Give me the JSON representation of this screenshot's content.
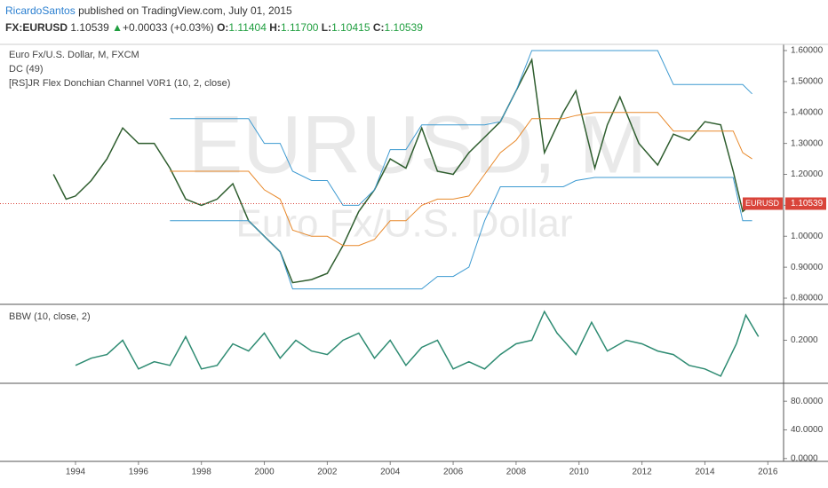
{
  "header": {
    "author": "RicardoSantos",
    "published": "published on TradingView.com, July 01, 2015",
    "symbol": "FX:EURUSD",
    "price": "1.10539",
    "arrow": "▲",
    "change": "+0.00033 (+0.03%)",
    "o_label": "O:",
    "o": "1.11404",
    "h_label": "H:",
    "h": "1.11700",
    "l_label": "L:",
    "l": "1.10415",
    "c_label": "C:",
    "c": "1.10539"
  },
  "chart_data": [
    {
      "type": "line",
      "title": "Euro Fx/U.S. Dollar, M, FXCM",
      "annotations": [
        "DC (49)",
        "[RS]JR Flex Donchian Channel V0R1 (10, 2, close)"
      ],
      "watermark": [
        "EURUSD, M",
        "Euro Fx/U.S. Dollar"
      ],
      "price_symbol": "EURUSD",
      "price_line": 1.10539,
      "x": [
        1993.3,
        1993.7,
        1994.0,
        1994.5,
        1995.0,
        1995.5,
        1996.0,
        1996.5,
        1997.0,
        1997.5,
        1998.0,
        1998.5,
        1999.0,
        1999.5,
        2000.0,
        2000.5,
        2000.9,
        2001.5,
        2002.0,
        2002.5,
        2003.0,
        2003.5,
        2004.0,
        2004.5,
        2005.0,
        2005.5,
        2006.0,
        2006.5,
        2007.0,
        2007.5,
        2008.0,
        2008.5,
        2008.9,
        2009.5,
        2009.9,
        2010.5,
        2010.9,
        2011.3,
        2011.9,
        2012.5,
        2013.0,
        2013.5,
        2014.0,
        2014.5,
        2014.9,
        2015.2,
        2015.5
      ],
      "series": [
        {
          "color": "#2f5e2f",
          "values": [
            1.2,
            1.12,
            1.13,
            1.18,
            1.25,
            1.35,
            1.3,
            1.3,
            1.22,
            1.12,
            1.1,
            1.12,
            1.17,
            1.05,
            1.0,
            0.95,
            0.85,
            0.86,
            0.88,
            0.97,
            1.08,
            1.15,
            1.25,
            1.22,
            1.35,
            1.21,
            1.2,
            1.27,
            1.32,
            1.37,
            1.47,
            1.57,
            1.27,
            1.4,
            1.47,
            1.22,
            1.36,
            1.45,
            1.3,
            1.23,
            1.33,
            1.31,
            1.37,
            1.36,
            1.21,
            1.08,
            1.105
          ]
        },
        {
          "color": "#3d9ad1",
          "values": [
            null,
            null,
            null,
            null,
            null,
            null,
            null,
            null,
            1.38,
            1.38,
            1.38,
            1.38,
            1.38,
            1.38,
            1.3,
            1.3,
            1.21,
            1.18,
            1.18,
            1.1,
            1.1,
            1.15,
            1.28,
            1.28,
            1.36,
            1.36,
            1.36,
            1.36,
            1.36,
            1.37,
            1.47,
            1.6,
            1.6,
            1.6,
            1.6,
            1.6,
            1.6,
            1.6,
            1.6,
            1.6,
            1.49,
            1.49,
            1.49,
            1.49,
            1.49,
            1.49,
            1.46
          ]
        },
        {
          "color": "#3d9ad1",
          "values": [
            null,
            null,
            null,
            null,
            null,
            null,
            null,
            null,
            1.05,
            1.05,
            1.05,
            1.05,
            1.05,
            1.05,
            1.0,
            0.95,
            0.83,
            0.83,
            0.83,
            0.83,
            0.83,
            0.83,
            0.83,
            0.83,
            0.83,
            0.87,
            0.87,
            0.9,
            1.05,
            1.16,
            1.16,
            1.16,
            1.16,
            1.16,
            1.18,
            1.19,
            1.19,
            1.19,
            1.19,
            1.19,
            1.19,
            1.19,
            1.19,
            1.19,
            1.19,
            1.05,
            1.05
          ]
        },
        {
          "color": "#e8892b",
          "values": [
            null,
            null,
            null,
            null,
            null,
            null,
            null,
            null,
            1.21,
            1.21,
            1.21,
            1.21,
            1.21,
            1.21,
            1.15,
            1.12,
            1.02,
            1.0,
            1.0,
            0.97,
            0.97,
            0.99,
            1.05,
            1.05,
            1.1,
            1.12,
            1.12,
            1.13,
            1.2,
            1.27,
            1.31,
            1.38,
            1.38,
            1.38,
            1.39,
            1.4,
            1.4,
            1.4,
            1.4,
            1.4,
            1.34,
            1.34,
            1.34,
            1.34,
            1.34,
            1.27,
            1.25
          ]
        }
      ],
      "xlim": [
        1991.6,
        2016.5
      ],
      "xticks": [
        1994,
        1996,
        1998,
        2000,
        2002,
        2004,
        2006,
        2008,
        2010,
        2012,
        2014,
        2016
      ],
      "ylim": [
        0.78,
        1.62
      ],
      "yticks": [
        {
          "value": 0.8,
          "label": "0.80000"
        },
        {
          "value": 0.9,
          "label": "0.90000"
        },
        {
          "value": 1.0,
          "label": "1.00000"
        },
        {
          "value": 1.1,
          "label": "1.10000"
        },
        {
          "value": 1.2,
          "label": "1.20000"
        },
        {
          "value": 1.3,
          "label": "1.30000"
        },
        {
          "value": 1.4,
          "label": "1.40000"
        },
        {
          "value": 1.5,
          "label": "1.50000"
        },
        {
          "value": 1.6,
          "label": "1.60000"
        }
      ],
      "grid": false
    },
    {
      "type": "line",
      "title": "BBW (10, close, 2)",
      "x": [
        1994.0,
        1994.5,
        1995.0,
        1995.5,
        1996.0,
        1996.5,
        1997.0,
        1997.5,
        1998.0,
        1998.5,
        1999.0,
        1999.5,
        2000.0,
        2000.5,
        2001.0,
        2001.5,
        2002.0,
        2002.5,
        2003.0,
        2003.5,
        2004.0,
        2004.5,
        2005.0,
        2005.5,
        2006.0,
        2006.5,
        2007.0,
        2007.5,
        2008.0,
        2008.5,
        2008.9,
        2009.3,
        2009.9,
        2010.4,
        2010.9,
        2011.5,
        2012.0,
        2012.5,
        2013.0,
        2013.5,
        2014.0,
        2014.5,
        2015.0,
        2015.3,
        2015.7
      ],
      "series": [
        {
          "color": "#2e8b72",
          "values": [
            0.13,
            0.15,
            0.16,
            0.2,
            0.12,
            0.14,
            0.13,
            0.21,
            0.12,
            0.13,
            0.19,
            0.17,
            0.22,
            0.15,
            0.2,
            0.17,
            0.16,
            0.2,
            0.22,
            0.15,
            0.2,
            0.13,
            0.18,
            0.2,
            0.12,
            0.14,
            0.12,
            0.16,
            0.19,
            0.2,
            0.28,
            0.22,
            0.16,
            0.25,
            0.17,
            0.2,
            0.19,
            0.17,
            0.16,
            0.13,
            0.12,
            0.1,
            0.19,
            0.27,
            0.21
          ]
        }
      ],
      "xlim": [
        1991.6,
        2016.5
      ],
      "ylim": [
        0.08,
        0.3
      ],
      "yticks": [
        {
          "value": 0.2,
          "label": "0.2000"
        }
      ],
      "grid": false
    },
    {
      "type": "line",
      "x": [],
      "series": [],
      "xlim": [
        1991.6,
        2016.5
      ],
      "ylim": [
        -4,
        105
      ],
      "yticks": [
        {
          "value": 0,
          "label": "0.0000"
        },
        {
          "value": 40,
          "label": "40.0000"
        },
        {
          "value": 80,
          "label": "80.0000"
        }
      ],
      "grid": false
    }
  ]
}
